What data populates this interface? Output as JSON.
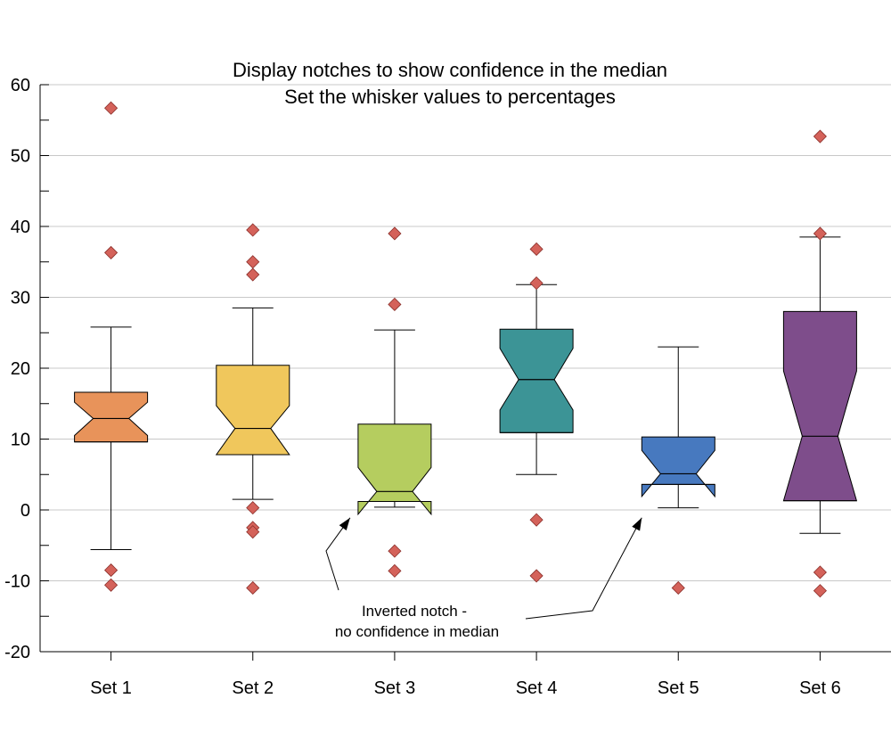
{
  "chart_data": {
    "type": "box",
    "title": "Display notches to show confidence in the median",
    "subtitle": "Set the whisker values to percentages",
    "categories": [
      "Set 1",
      "Set 2",
      "Set 3",
      "Set 4",
      "Set 5",
      "Set 6"
    ],
    "ylim": [
      -20,
      60
    ],
    "ytick_labels": [
      "-20",
      "-10",
      "0",
      "10",
      "20",
      "30",
      "40",
      "50",
      "60"
    ],
    "grid": true,
    "boxes": [
      {
        "name": "Set 1",
        "color": "#e8935a",
        "whisker_low": -5.6,
        "q1": 9.6,
        "median": 12.9,
        "q3": 16.6,
        "whisker_high": 25.8,
        "notch_low": 10.5,
        "notch_high": 15.2,
        "outliers": [
          56.7,
          36.3,
          -8.5,
          -10.6
        ]
      },
      {
        "name": "Set 2",
        "color": "#f0c75c",
        "whisker_low": 1.5,
        "q1": 7.8,
        "median": 11.5,
        "q3": 20.4,
        "whisker_high": 28.5,
        "notch_low": 7.8,
        "notch_high": 14.7,
        "outliers": [
          39.5,
          35.0,
          33.2,
          0.3,
          -2.5,
          -3.1,
          -11.0
        ]
      },
      {
        "name": "Set 3",
        "color": "#b5cd5f",
        "whisker_low": 0.4,
        "q1": 1.2,
        "median": 2.6,
        "q3": 12.1,
        "whisker_high": 25.4,
        "notch_low": -0.6,
        "notch_high": 6.0,
        "outliers": [
          39.0,
          29.0,
          -5.8,
          -8.6
        ]
      },
      {
        "name": "Set 4",
        "color": "#3c9496",
        "whisker_low": 5.0,
        "q1": 10.9,
        "median": 18.4,
        "q3": 25.5,
        "whisker_high": 31.8,
        "notch_low": 14.1,
        "notch_high": 22.8,
        "outliers": [
          36.8,
          32.0,
          -1.4,
          -9.3
        ]
      },
      {
        "name": "Set 5",
        "color": "#4779bf",
        "whisker_low": 0.3,
        "q1": 3.6,
        "median": 5.1,
        "q3": 10.3,
        "whisker_high": 23.0,
        "notch_low": 1.9,
        "notch_high": 8.4,
        "outliers": [
          -11.0
        ]
      },
      {
        "name": "Set 6",
        "color": "#7e4d8b",
        "whisker_low": -3.3,
        "q1": 1.3,
        "median": 10.4,
        "q3": 28.0,
        "whisker_high": 38.5,
        "notch_low": 1.3,
        "notch_high": 19.6,
        "outliers": [
          52.7,
          39.0,
          -8.8,
          -11.4
        ]
      }
    ],
    "outlier_color": "#d4625a",
    "annotation": {
      "lines": [
        "Inverted notch -",
        "no confidence in median"
      ],
      "targets": [
        "Set 3",
        "Set 5"
      ]
    }
  }
}
